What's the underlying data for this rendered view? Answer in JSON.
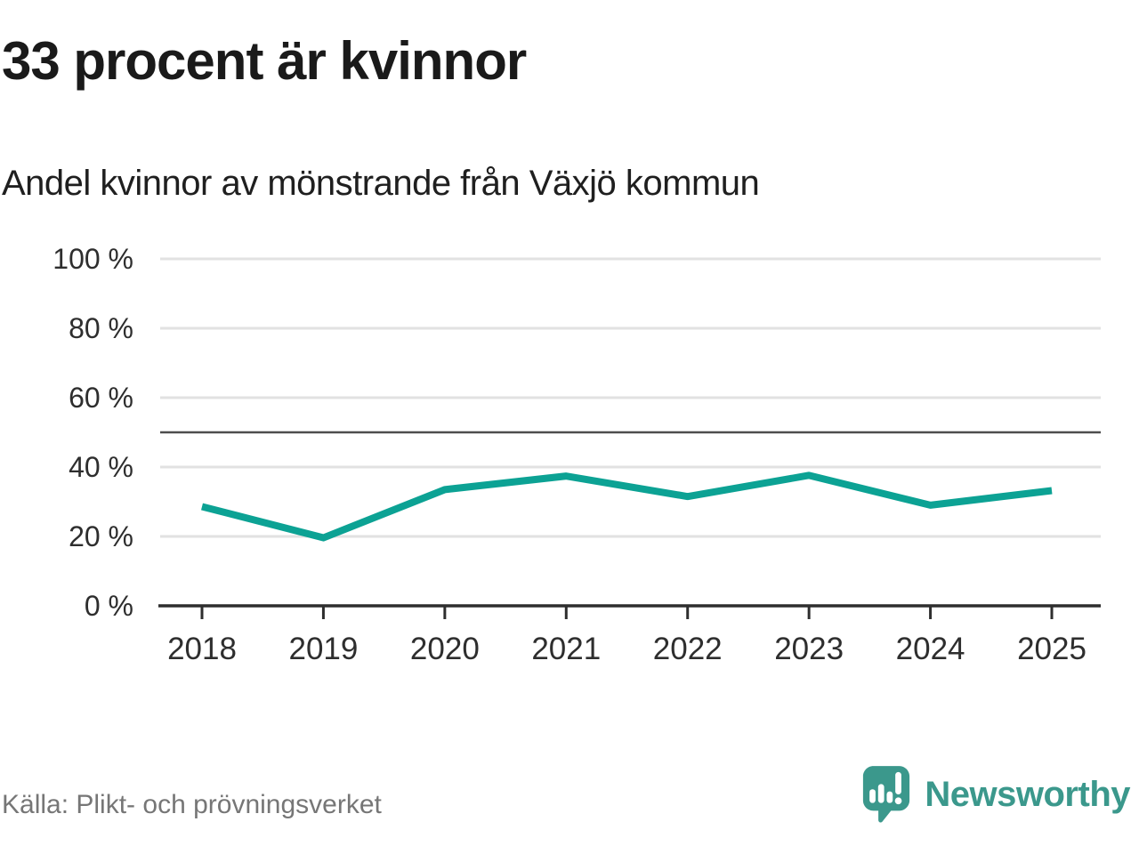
{
  "header": {
    "title": "33 procent är kvinnor",
    "subtitle": "Andel kvinnor av mönstrande från Växjö kommun"
  },
  "chart_data": {
    "type": "line",
    "x": [
      "2018",
      "2019",
      "2020",
      "2021",
      "2022",
      "2023",
      "2024",
      "2025"
    ],
    "series": [
      {
        "name": "Andel kvinnor av mönstrande",
        "values": [
          28.6,
          19.6,
          33.5,
          37.4,
          31.5,
          37.6,
          29.0,
          33.2
        ]
      }
    ],
    "title": "33 procent är kvinnor",
    "subtitle": "Andel kvinnor av mönstrande från Växjö kommun",
    "xlabel": "",
    "ylabel": "",
    "ylim": [
      0,
      100
    ],
    "yticks": [
      0,
      20,
      40,
      60,
      80,
      100
    ],
    "ytick_suffix": " %",
    "reference_line": 50,
    "grid": true,
    "legend": "none"
  },
  "footer": {
    "source": "Källa: Plikt- och prövningsverket",
    "logo_text": "Newsworthy"
  },
  "colors": {
    "line": "#0ca294",
    "grid": "#e2e2e2",
    "reference_line": "#4d4d4d",
    "axis": "#2e2e2e",
    "tick_text": "#2e2e2e",
    "muted_text": "#767676",
    "logo": "#3b988c"
  }
}
